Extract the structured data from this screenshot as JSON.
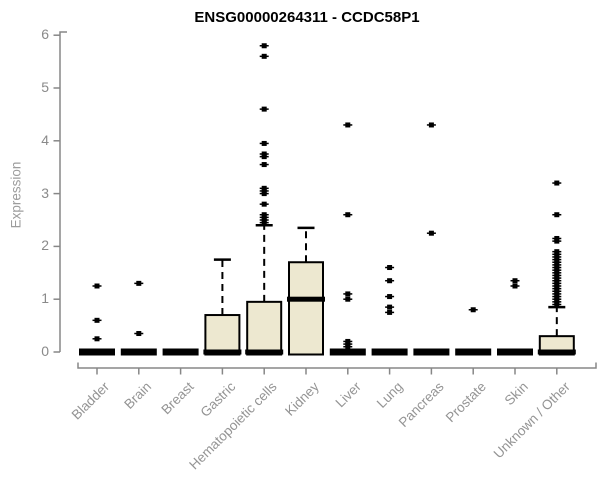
{
  "colors": {
    "box_fill": "#EDE8D0",
    "box_stroke": "#000000",
    "axis": "#878787",
    "tick_label": "#8a8a8a",
    "category_label": "#949494",
    "title": "#000000"
  },
  "chart_data": {
    "type": "boxplot",
    "title": "ENSG00000264311 - CCDC58P1",
    "ylabel": "Expression",
    "xlabel": "",
    "ylim": [
      0,
      6
    ],
    "yticks": [
      0,
      1,
      2,
      3,
      4,
      5,
      6
    ],
    "grid": false,
    "legend": "none",
    "categories": [
      "Bladder",
      "Brain",
      "Breast",
      "Gastric",
      "Hematopoietic cells",
      "Kidney",
      "Liver",
      "Lung",
      "Pancreas",
      "Prostate",
      "Skin",
      "Unknown / Other"
    ],
    "boxes": [
      {
        "category": "Bladder",
        "q1": 0,
        "median": 0,
        "q3": 0,
        "whisker_low": 0,
        "whisker_high": 0,
        "outliers": [
          0.25,
          0.6,
          1.25
        ]
      },
      {
        "category": "Brain",
        "q1": 0,
        "median": 0,
        "q3": 0,
        "whisker_low": 0,
        "whisker_high": 0,
        "outliers": [
          0.35,
          1.3
        ]
      },
      {
        "category": "Breast",
        "q1": 0,
        "median": 0,
        "q3": 0,
        "whisker_low": 0,
        "whisker_high": 0,
        "outliers": []
      },
      {
        "category": "Gastric",
        "q1": 0,
        "median": 0,
        "q3": 0.7,
        "whisker_low": 0,
        "whisker_high": 1.75,
        "outliers": []
      },
      {
        "category": "Hematopoietic cells",
        "q1": 0,
        "median": 0,
        "q3": 0.95,
        "whisker_low": 0,
        "whisker_high": 2.4,
        "outliers": [
          2.45,
          2.5,
          2.55,
          2.6,
          2.8,
          3.0,
          3.05,
          3.1,
          3.55,
          3.7,
          3.75,
          3.95,
          4.6,
          5.6,
          5.8
        ]
      },
      {
        "category": "Kidney",
        "q1": 0,
        "median": 1.0,
        "q3": 1.7,
        "whisker_low": 0,
        "whisker_high": 2.35,
        "outliers": []
      },
      {
        "category": "Liver",
        "q1": 0,
        "median": 0,
        "q3": 0,
        "whisker_low": 0,
        "whisker_high": 0,
        "outliers": [
          0.1,
          0.15,
          0.2,
          1.0,
          1.1,
          2.6,
          4.3
        ]
      },
      {
        "category": "Lung",
        "q1": 0,
        "median": 0,
        "q3": 0,
        "whisker_low": 0,
        "whisker_high": 0,
        "outliers": [
          0.75,
          0.85,
          1.05,
          1.35,
          1.6
        ]
      },
      {
        "category": "Pancreas",
        "q1": 0,
        "median": 0,
        "q3": 0,
        "whisker_low": 0,
        "whisker_high": 0,
        "outliers": [
          2.25,
          4.3
        ]
      },
      {
        "category": "Prostate",
        "q1": 0,
        "median": 0,
        "q3": 0,
        "whisker_low": 0,
        "whisker_high": 0,
        "outliers": [
          0.8
        ]
      },
      {
        "category": "Skin",
        "q1": 0,
        "median": 0,
        "q3": 0,
        "whisker_low": 0,
        "whisker_high": 0,
        "outliers": [
          1.25,
          1.35
        ]
      },
      {
        "category": "Unknown / Other",
        "q1": 0,
        "median": 0,
        "q3": 0.3,
        "whisker_low": 0,
        "whisker_high": 0.85,
        "outliers": [
          0.9,
          0.95,
          1.0,
          1.05,
          1.1,
          1.15,
          1.2,
          1.25,
          1.3,
          1.35,
          1.4,
          1.45,
          1.5,
          1.55,
          1.6,
          1.65,
          1.7,
          1.75,
          1.8,
          1.85,
          1.9,
          2.1,
          2.15,
          2.6,
          3.2
        ]
      }
    ]
  }
}
